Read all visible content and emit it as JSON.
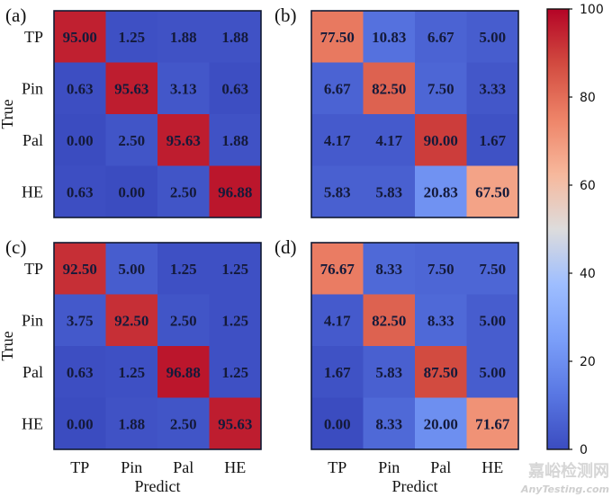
{
  "chart_data": [
    {
      "type": "heatmap",
      "panel_label": "(a)",
      "title": "",
      "xlabel": "",
      "ylabel": "True",
      "x_categories": [
        "TP",
        "Pin",
        "Pal",
        "HE"
      ],
      "y_categories": [
        "TP",
        "Pin",
        "Pal",
        "HE"
      ],
      "show_xticks": false,
      "show_yticks": true,
      "values": [
        [
          95.0,
          1.25,
          1.88,
          1.88
        ],
        [
          0.63,
          95.63,
          3.13,
          0.63
        ],
        [
          0.0,
          2.5,
          95.63,
          1.88
        ],
        [
          0.63,
          0.0,
          2.5,
          96.88
        ]
      ],
      "value_format": "2 decimals"
    },
    {
      "type": "heatmap",
      "panel_label": "(b)",
      "title": "",
      "xlabel": "",
      "ylabel": "",
      "x_categories": [
        "TP",
        "Pin",
        "Pal",
        "HE"
      ],
      "y_categories": [
        "TP",
        "Pin",
        "Pal",
        "HE"
      ],
      "show_xticks": false,
      "show_yticks": false,
      "values": [
        [
          77.5,
          10.83,
          6.67,
          5.0
        ],
        [
          6.67,
          82.5,
          7.5,
          3.33
        ],
        [
          4.17,
          4.17,
          90.0,
          1.67
        ],
        [
          5.83,
          5.83,
          20.83,
          67.5
        ]
      ],
      "value_format": "2 decimals"
    },
    {
      "type": "heatmap",
      "panel_label": "(c)",
      "title": "",
      "xlabel": "Predict",
      "ylabel": "True",
      "x_categories": [
        "TP",
        "Pin",
        "Pal",
        "HE"
      ],
      "y_categories": [
        "TP",
        "Pin",
        "Pal",
        "HE"
      ],
      "show_xticks": true,
      "show_yticks": true,
      "values": [
        [
          92.5,
          5.0,
          1.25,
          1.25
        ],
        [
          3.75,
          92.5,
          2.5,
          1.25
        ],
        [
          0.63,
          1.25,
          96.88,
          1.25
        ],
        [
          0.0,
          1.88,
          2.5,
          95.63
        ]
      ],
      "value_format": "2 decimals"
    },
    {
      "type": "heatmap",
      "panel_label": "(d)",
      "title": "",
      "xlabel": "Predict",
      "ylabel": "",
      "x_categories": [
        "TP",
        "Pin",
        "Pal",
        "HE"
      ],
      "y_categories": [
        "TP",
        "Pin",
        "Pal",
        "HE"
      ],
      "show_xticks": true,
      "show_yticks": false,
      "values": [
        [
          76.67,
          8.33,
          7.5,
          7.5
        ],
        [
          4.17,
          82.5,
          8.33,
          5.0
        ],
        [
          1.67,
          5.83,
          87.5,
          5.0
        ],
        [
          0.0,
          8.33,
          20.0,
          71.67
        ]
      ],
      "value_format": "2 decimals"
    }
  ],
  "colorbar": {
    "colormap": "coolwarm",
    "range": [
      0,
      100
    ],
    "ticks": [
      0,
      20,
      40,
      60,
      80,
      100
    ],
    "tick_labels": [
      "0",
      "20",
      "40",
      "60",
      "80",
      "100"
    ]
  },
  "colormap_stops": [
    {
      "value": 0,
      "color": "#3b4cc0"
    },
    {
      "value": 12.5,
      "color": "#5977e3"
    },
    {
      "value": 25,
      "color": "#7b9ff9"
    },
    {
      "value": 37.5,
      "color": "#9ebeff"
    },
    {
      "value": 50,
      "color": "#dddcdc"
    },
    {
      "value": 62.5,
      "color": "#f7b89c"
    },
    {
      "value": 75,
      "color": "#ee8468"
    },
    {
      "value": 87.5,
      "color": "#d24b40"
    },
    {
      "value": 100,
      "color": "#b40426"
    }
  ],
  "watermark": {
    "line1": "嘉峪检测网",
    "line2": "AnyTesting.com"
  }
}
